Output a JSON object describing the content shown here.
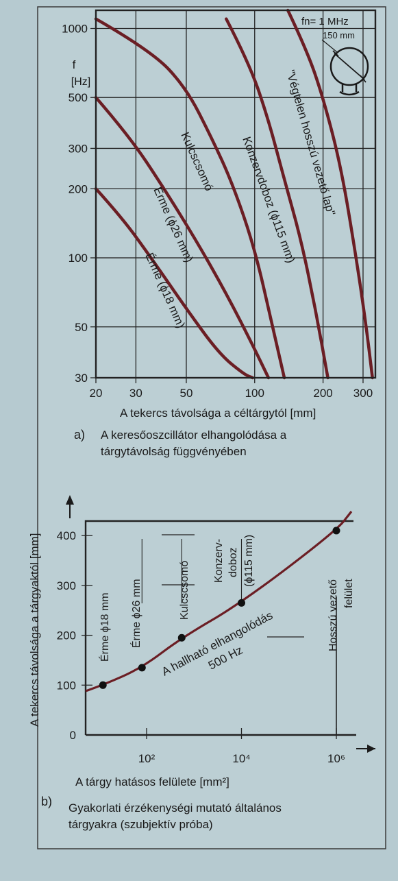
{
  "chart_a": {
    "type": "line",
    "note": "fn= 1 MHz",
    "size_label": "150 mm",
    "ylabel_symbol": "f",
    "ylabel_unit": "[Hz]",
    "xlabel": "A tekercs távolsága a céltárgytól  [mm]",
    "caption_letter": "a)",
    "caption_line1": "A keresőoszcillátor elhangolódása a",
    "caption_line2": "tárgytávolság függvényében",
    "x_scale": "log",
    "y_scale": "log",
    "xlim": [
      20,
      340
    ],
    "ylim": [
      30,
      1200
    ],
    "x_ticks": [
      20,
      30,
      50,
      100,
      200,
      300
    ],
    "y_ticks": [
      30,
      50,
      100,
      200,
      300,
      500,
      1000
    ],
    "grid": true
  },
  "chart_data": [
    {
      "type": "line",
      "x_scale": "log",
      "y_scale": "log",
      "series": [
        {
          "name": "Érme (ϕ18 mm)",
          "x": [
            20,
            26,
            35,
            50,
            70,
            90,
            98
          ],
          "y": [
            200,
            150,
            100,
            60,
            38,
            31,
            30
          ]
        },
        {
          "name": "Érme (ϕ26 mm)",
          "x": [
            20,
            28,
            40,
            55,
            75,
            100,
            115
          ],
          "y": [
            500,
            340,
            200,
            120,
            70,
            40,
            30
          ]
        },
        {
          "name": "Kulcscsomó",
          "x": [
            20,
            35,
            50,
            65,
            80,
            100,
            120,
            135
          ],
          "y": [
            1100,
            800,
            550,
            330,
            210,
            110,
            50,
            30
          ]
        },
        {
          "name": "Konzervdoboz (ϕ115 mm)",
          "x": [
            75,
            95,
            115,
            135,
            160,
            185,
            210
          ],
          "y": [
            1100,
            700,
            400,
            220,
            120,
            60,
            30
          ]
        },
        {
          "name": "\"Végtelen hosszú vezető lap\"",
          "x": [
            140,
            170,
            200,
            240,
            280,
            310,
            330
          ],
          "y": [
            1200,
            800,
            500,
            250,
            100,
            50,
            30
          ]
        }
      ]
    },
    {
      "type": "line",
      "x_scale": "log",
      "series": [
        {
          "name": "A hallható elhangolódás 500 Hz",
          "x": [
            12,
            80,
            550,
            10000,
            1000000
          ],
          "y": [
            100,
            135,
            195,
            265,
            410
          ]
        }
      ],
      "points": [
        {
          "label": "Érme ϕ18 mm",
          "x": 12,
          "y": 100
        },
        {
          "label": "Érme ϕ26 mm",
          "x": 80,
          "y": 135
        },
        {
          "label": "Kulcscsomó",
          "x": 550,
          "y": 195
        },
        {
          "label": "Konzerv- doboz (ϕ115 mm)",
          "x": 10000,
          "y": 265
        },
        {
          "label": "Hosszú vezető felület",
          "x": 1000000,
          "y": 410
        }
      ],
      "xlim": [
        5,
        3000000
      ],
      "ylim": [
        0,
        450
      ],
      "x_ticks": [
        100,
        10000,
        1000000
      ],
      "y_ticks": [
        0,
        100,
        200,
        300,
        400
      ]
    }
  ],
  "chart_b": {
    "ylabel": "A tekercs távolsága a tárgyaktól [mm]",
    "xlabel": "A tárgy hatásos felülete  [mm²]",
    "x_tick_labels": [
      "10²",
      "10⁴",
      "10⁶"
    ],
    "caption_letter": "b)",
    "caption_line1": "Gyakorlati érzékenységi mutató általános",
    "caption_line2": "tárgyakra   (szubjektív próba)",
    "curve_label_line1": "A hallható elhangolódás",
    "curve_label_line2": "500 Hz",
    "point_labels": {
      "p1": "Érme ϕ18 mm",
      "p2": "Érme ϕ26 mm",
      "p3": "Kulcscsomó",
      "p4a": "Konzerv-",
      "p4b": "doboz",
      "p4c": "(ϕ115 mm)",
      "p5a": "Hosszú vezető",
      "p5b": "felület"
    }
  },
  "labels_a": {
    "s1": "Érme (ϕ18 mm)",
    "s2": "Érme (ϕ26 mm)",
    "s3": "Kulcscsomó",
    "s4": "Konzervdoboz  (ϕ115 mm)",
    "s5": "\"Végtelen hosszú vezető lap\""
  }
}
